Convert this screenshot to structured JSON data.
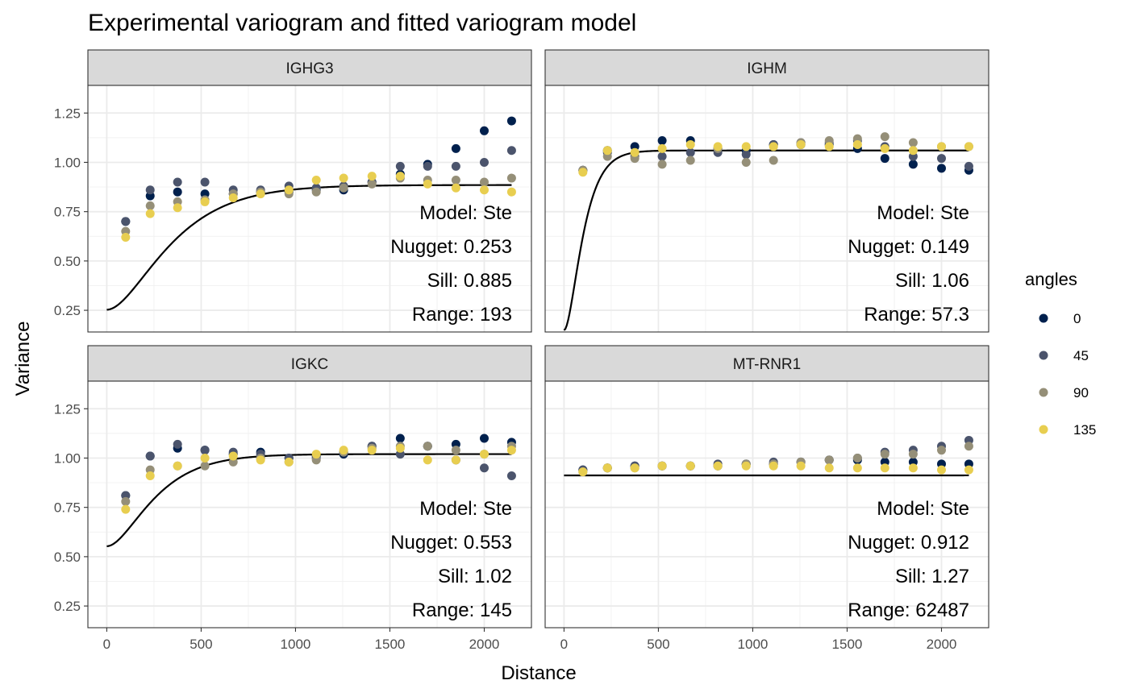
{
  "chart_data": {
    "type": "scatter",
    "title": "Experimental variogram and fitted variogram model",
    "xlabel": "Distance",
    "ylabel": "Variance",
    "xlim": [
      -100,
      2250
    ],
    "ylim": [
      0.14,
      1.39
    ],
    "xticks": [
      0,
      500,
      1000,
      1500,
      2000
    ],
    "yticks": [
      0.25,
      0.5,
      0.75,
      1.0,
      1.25
    ],
    "xtick_labels": [
      "0",
      "500",
      "1000",
      "1500",
      "2000"
    ],
    "ytick_labels": [
      "0.25",
      "0.50",
      "0.75",
      "1.00",
      "1.25"
    ],
    "grid": true,
    "legend": {
      "title": "angles",
      "position": "right",
      "entries": [
        {
          "label": "0",
          "color": "#00204D"
        },
        {
          "label": "45",
          "color": "#4B546C"
        },
        {
          "label": "90",
          "color": "#958F78"
        },
        {
          "label": "135",
          "color": "#E8CE50"
        }
      ]
    },
    "x": [
      100,
      230,
      375,
      520,
      670,
      815,
      965,
      1110,
      1255,
      1405,
      1555,
      1700,
      1850,
      2000,
      2145
    ],
    "panels": [
      {
        "label": "IGHG3",
        "model": {
          "nugget": 0.253,
          "sill": 0.885,
          "range": 193
        },
        "annotations": [
          "Model: Ste",
          "Nugget: 0.253",
          "Sill: 0.885",
          "Range: 193"
        ],
        "series": [
          {
            "name": "0",
            "values": [
              0.7,
              0.83,
              0.85,
              0.84,
              0.84,
              0.85,
              0.85,
              0.86,
              0.86,
              0.9,
              0.94,
              0.99,
              1.07,
              1.16,
              1.21
            ]
          },
          {
            "name": "45",
            "values": [
              0.7,
              0.86,
              0.9,
              0.9,
              0.86,
              0.86,
              0.88,
              0.87,
              0.88,
              0.9,
              0.98,
              0.98,
              0.98,
              1.0,
              1.06
            ]
          },
          {
            "name": "90",
            "values": [
              0.65,
              0.78,
              0.8,
              0.81,
              0.84,
              0.85,
              0.84,
              0.85,
              0.87,
              0.89,
              0.92,
              0.91,
              0.91,
              0.9,
              0.92
            ]
          },
          {
            "name": "135",
            "values": [
              0.62,
              0.74,
              0.77,
              0.8,
              0.82,
              0.84,
              0.86,
              0.91,
              0.92,
              0.93,
              0.93,
              0.89,
              0.87,
              0.86,
              0.85
            ]
          }
        ]
      },
      {
        "label": "IGHM",
        "model": {
          "nugget": 0.149,
          "sill": 1.06,
          "range": 57.3
        },
        "annotations": [
          "Model: Ste",
          "Nugget: 0.149",
          "Sill: 1.06",
          "Range: 57.3"
        ],
        "series": [
          {
            "name": "0",
            "values": [
              0.96,
              1.06,
              1.08,
              1.11,
              1.11,
              1.07,
              1.06,
              1.09,
              1.09,
              1.09,
              1.07,
              1.02,
              0.99,
              0.97,
              0.96
            ]
          },
          {
            "name": "45",
            "values": [
              0.96,
              1.05,
              1.03,
              1.03,
              1.05,
              1.05,
              1.04,
              1.09,
              1.1,
              1.1,
              1.11,
              1.08,
              1.03,
              1.02,
              0.98
            ]
          },
          {
            "name": "90",
            "values": [
              0.96,
              1.03,
              1.02,
              0.99,
              1.01,
              1.07,
              1.0,
              1.01,
              1.1,
              1.11,
              1.12,
              1.13,
              1.1,
              1.08,
              1.08
            ]
          },
          {
            "name": "135",
            "values": [
              0.95,
              1.06,
              1.05,
              1.07,
              1.09,
              1.08,
              1.08,
              1.08,
              1.09,
              1.08,
              1.09,
              1.07,
              1.06,
              1.08,
              1.08
            ]
          }
        ]
      },
      {
        "label": "IGKC",
        "model": {
          "nugget": 0.553,
          "sill": 1.02,
          "range": 145
        },
        "annotations": [
          "Model: Ste",
          "Nugget: 0.553",
          "Sill: 1.02",
          "Range: 145"
        ],
        "series": [
          {
            "name": "0",
            "values": [
              0.81,
              1.01,
              1.05,
              1.04,
              1.02,
              1.03,
              1.0,
              1.01,
              1.02,
              1.06,
              1.1,
              1.06,
              1.07,
              1.1,
              1.08
            ]
          },
          {
            "name": "45",
            "values": [
              0.81,
              1.01,
              1.07,
              1.04,
              1.03,
              1.02,
              1.0,
              1.0,
              1.03,
              1.06,
              1.02,
              1.06,
              0.99,
              0.95,
              0.91
            ]
          },
          {
            "name": "90",
            "values": [
              0.78,
              0.94,
              0.96,
              0.96,
              0.98,
              1.0,
              0.98,
              0.99,
              1.03,
              1.05,
              1.06,
              1.06,
              1.04,
              1.02,
              1.06
            ]
          },
          {
            "name": "135",
            "values": [
              0.74,
              0.91,
              0.96,
              1.0,
              1.01,
              0.99,
              0.98,
              1.02,
              1.04,
              1.04,
              1.05,
              0.99,
              0.99,
              1.02,
              1.04
            ]
          }
        ]
      },
      {
        "label": "MT-RNR1",
        "model": {
          "nugget": 0.912,
          "sill": 1.27,
          "range": 62487
        },
        "annotations": [
          "Model: Ste",
          "Nugget: 0.912",
          "Sill: 1.27",
          "Range: 62487"
        ],
        "series": [
          {
            "name": "0",
            "values": [
              0.94,
              0.95,
              0.96,
              0.96,
              0.96,
              0.96,
              0.97,
              0.97,
              0.98,
              0.99,
              0.99,
              0.98,
              0.98,
              0.97,
              0.97
            ]
          },
          {
            "name": "45",
            "values": [
              0.94,
              0.95,
              0.96,
              0.96,
              0.96,
              0.97,
              0.97,
              0.98,
              0.98,
              0.99,
              1.0,
              1.03,
              1.04,
              1.06,
              1.09
            ]
          },
          {
            "name": "90",
            "values": [
              0.93,
              0.95,
              0.95,
              0.96,
              0.96,
              0.96,
              0.97,
              0.97,
              0.98,
              0.99,
              1.0,
              1.02,
              1.02,
              1.04,
              1.06
            ]
          },
          {
            "name": "135",
            "values": [
              0.93,
              0.95,
              0.95,
              0.96,
              0.96,
              0.96,
              0.96,
              0.96,
              0.96,
              0.95,
              0.95,
              0.95,
              0.95,
              0.94,
              0.94
            ]
          }
        ]
      }
    ]
  }
}
